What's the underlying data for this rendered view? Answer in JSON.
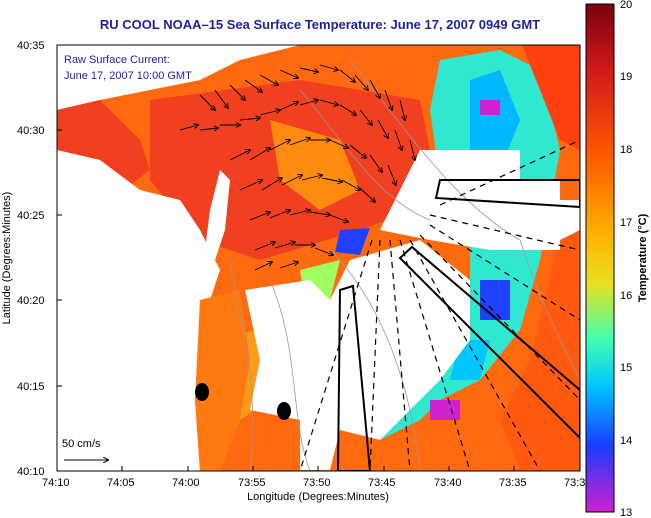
{
  "title": "RU COOL   NOAA–15  Sea Surface Temperature:  June 17, 2007 0949 GMT",
  "current_legend": {
    "line1": "Raw Surface Current:",
    "line2": "June 17, 2007 10:00 GMT",
    "scale_label": "50 cm/s"
  },
  "x_axis": {
    "label": "Longitude (Degrees:Minutes)",
    "ticks": [
      "74:10",
      "74:05",
      "74:00",
      "73:55",
      "73:50",
      "73:45",
      "73:40",
      "73:35",
      "73:3"
    ]
  },
  "y_axis": {
    "label": "Latitude (Degrees:Minutes)",
    "ticks": [
      "40:35",
      "40:30",
      "40:25",
      "40:20",
      "40:15",
      "40:10"
    ]
  },
  "colorbar": {
    "label": "Temperature (°C)",
    "ticks": [
      "20",
      "19",
      "18",
      "17",
      "16",
      "15",
      "14",
      "13"
    ],
    "colors": [
      "#7a0010",
      "#d01a1a",
      "#ff5a00",
      "#ffb000",
      "#e8e020",
      "#40ffb0",
      "#00c8ff",
      "#1a3cff",
      "#d020d0"
    ]
  }
}
